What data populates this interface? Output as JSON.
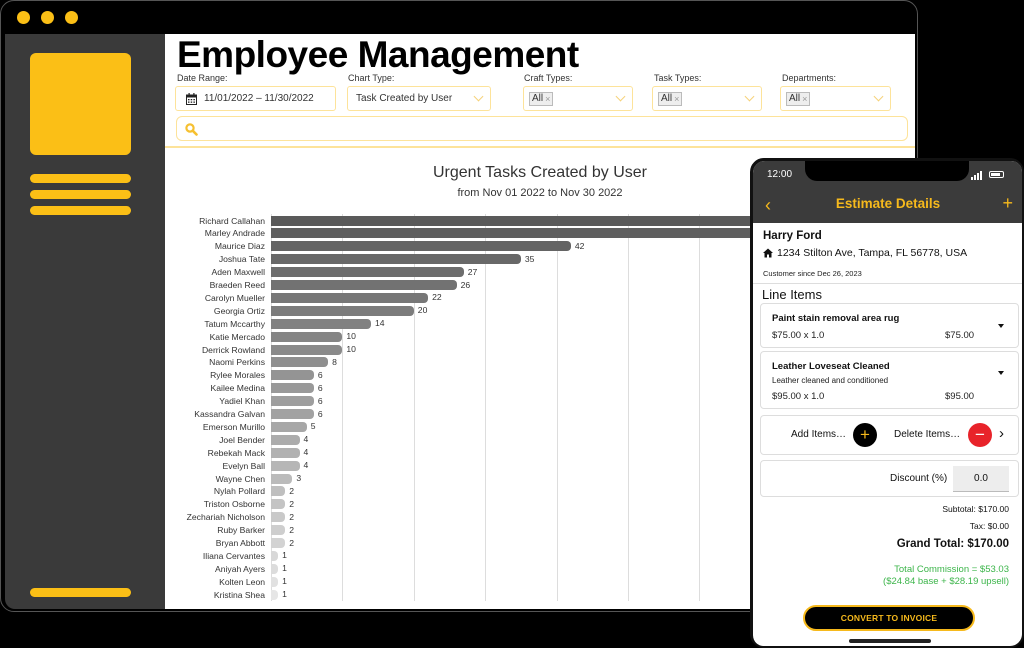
{
  "window": {
    "dot_color": "#fbbf16",
    "sidebar": {
      "menu_items": [
        "menu-line-1",
        "menu-line-2",
        "menu-line-3"
      ],
      "accent": "#fbbf16"
    }
  },
  "header": {
    "title": "Employee Management"
  },
  "filters": {
    "date_range": {
      "label": "Date Range:",
      "value": "11/01/2022 – 11/30/2022",
      "icon": "calendar-icon"
    },
    "chart_type": {
      "label": "Chart Type:",
      "value": "Task Created by User"
    },
    "craft_types": {
      "label": "Craft Types:",
      "tag": "All"
    },
    "task_types": {
      "label": "Task Types:",
      "tag": "All"
    },
    "departments": {
      "label": "Departments:",
      "tag": "All"
    },
    "search": {
      "placeholder": "",
      "icon": "search-icon"
    }
  },
  "chart_data": {
    "type": "bar",
    "orientation": "horizontal",
    "title": "Urgent Tasks Created by User",
    "subtitle": "from Nov 01 2022 to Nov 30 2022",
    "xlabel": "",
    "ylabel": "",
    "grid": true,
    "grid_interval": 10,
    "categories": [
      "Richard Callahan",
      "Marley Andrade",
      "Maurice Diaz",
      "Joshua Tate",
      "Aden Maxwell",
      "Braeden Reed",
      "Carolyn Mueller",
      "Georgia Ortiz",
      "Tatum Mccarthy",
      "Katie Mercado",
      "Derrick Rowland",
      "Naomi Perkins",
      "Rylee Morales",
      "Kailee Medina",
      "Yadiel Khan",
      "Kassandra Galvan",
      "Emerson Murillo",
      "Joel Bender",
      "Rebekah Mack",
      "Evelyn Ball",
      "Wayne Chen",
      "Nylah Pollard",
      "Triston Osborne",
      "Zechariah Nicholson",
      "Ruby Barker",
      "Bryan Abbott",
      "Iliana Cervantes",
      "Aniyah Ayers",
      "Kolten Leon",
      "Kristina Shea"
    ],
    "values": [
      null,
      null,
      42,
      35,
      27,
      26,
      22,
      20,
      14,
      10,
      10,
      8,
      6,
      6,
      6,
      6,
      5,
      4,
      4,
      4,
      3,
      2,
      2,
      2,
      2,
      2,
      1,
      1,
      1,
      1
    ],
    "value_labels": [
      "",
      "",
      "42",
      "35",
      "27",
      "26",
      "22",
      "20",
      "14",
      "10",
      "10",
      "8",
      "6",
      "6",
      "6",
      "6",
      "5",
      "4",
      "4",
      "4",
      "3",
      "2",
      "2",
      "2",
      "2",
      "2",
      "1",
      "1",
      "1",
      "1"
    ],
    "note": "First two bars extend beyond the visible area (obscured by phone overlay); values not visible"
  },
  "phone": {
    "status": {
      "time": "12:00"
    },
    "nav": {
      "title": "Estimate Details",
      "back_icon": "chevron-left-icon",
      "add_icon": "plus-icon"
    },
    "customer": {
      "name": "Harry Ford",
      "address": "1234 Stilton Ave, Tampa, FL 56778, USA",
      "since": "Customer since Dec 26, 2023"
    },
    "line_items_title": "Line Items",
    "line_items": [
      {
        "name": "Paint stain removal area rug",
        "description": "",
        "qty_text": "$75.00 x 1.0",
        "total": "$75.00"
      },
      {
        "name": "Leather Loveseat Cleaned",
        "description": "Leather cleaned and conditioned",
        "qty_text": "$95.00 x 1.0",
        "total": "$95.00"
      }
    ],
    "actions": {
      "add_label": "Add Items…",
      "delete_label": "Delete Items…"
    },
    "discount": {
      "label": "Discount (%)",
      "value": "0.0"
    },
    "totals": {
      "subtotal": "Subtotal: $170.00",
      "tax": "Tax: $0.00",
      "grand_total": "Grand Total: $170.00",
      "commission": "Total Commission = $53.03",
      "commission_detail": "($24.84 base + $28.19 upsell)",
      "commission_color": "#3cb54a"
    },
    "convert_button": "CONVERT TO INVOICE"
  }
}
